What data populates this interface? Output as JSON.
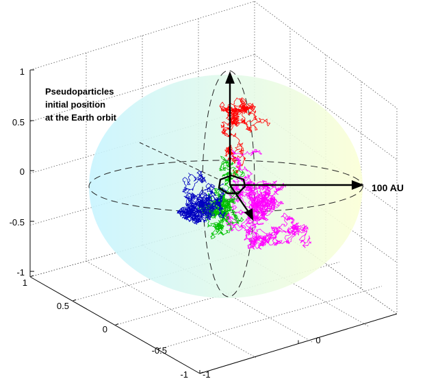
{
  "chart_data": {
    "type": "scatter",
    "title": "",
    "view": "3D trajectory plot inside a semi-transparent sphere",
    "axes": {
      "z": {
        "lim": [
          -1,
          1
        ],
        "ticks": [
          "1",
          "0.5",
          "0",
          "-0.5",
          "-1"
        ]
      },
      "y": {
        "lim": [
          -1,
          1
        ],
        "ticks": [
          "1",
          "0.5",
          "0",
          "-0.5",
          "-1"
        ]
      },
      "x": {
        "lim": [
          -1,
          1
        ],
        "ticks": [
          "-1",
          "0"
        ]
      }
    },
    "grid": true,
    "annotations": {
      "start_label": [
        "Pseudoparticles",
        "initial position",
        "at the Earth orbit"
      ],
      "scale_label": "100 AU"
    },
    "series": [
      {
        "color": "#ff0000",
        "region": "upper"
      },
      {
        "color": "#ff00ff",
        "region": "right"
      },
      {
        "color": "#00c000",
        "region": "center"
      },
      {
        "color": "#0000c0",
        "region": "lower-left"
      }
    ],
    "sphere_colors": [
      "#c8f4ff",
      "#fbffd6"
    ]
  }
}
